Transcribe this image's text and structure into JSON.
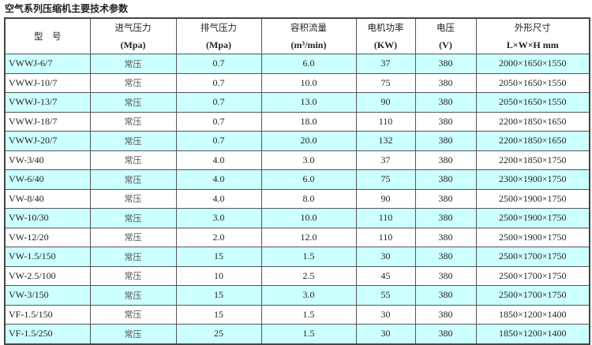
{
  "title": "空气系列压缩机主要技术参数",
  "colors": {
    "row_highlight": "#ccffff"
  },
  "headers": [
    {
      "cn": "型　号",
      "unit": ""
    },
    {
      "cn": "进气压力",
      "unit": "(Mpa)"
    },
    {
      "cn": "排气压力",
      "unit": "(Mpa)"
    },
    {
      "cn": "容积流量",
      "unit": "(m³/min)"
    },
    {
      "cn": "电机功率",
      "unit": "(KW)"
    },
    {
      "cn": "电压",
      "unit": "(V)"
    },
    {
      "cn": "外形尺寸",
      "unit": "L×W×H mm"
    }
  ],
  "rows": [
    [
      "VWWJ-6/7",
      "常压",
      "0.7",
      "6.0",
      "37",
      "380",
      "2000×1650×1550"
    ],
    [
      "VWWJ-10/7",
      "常压",
      "0.7",
      "10.0",
      "75",
      "380",
      "2050×1650×1550"
    ],
    [
      "VWWJ-13/7",
      "常压",
      "0.7",
      "13.0",
      "90",
      "380",
      "2050×1650×1550"
    ],
    [
      "VWWJ-18/7",
      "常压",
      "0.7",
      "18.0",
      "110",
      "380",
      "2200×1850×1650"
    ],
    [
      "VWWJ-20/7",
      "常压",
      "0.7",
      "20.0",
      "132",
      "380",
      "2200×1850×1650"
    ],
    [
      "VW-3/40",
      "常压",
      "4.0",
      "3.0",
      "37",
      "380",
      "2200×1850×1750"
    ],
    [
      "VW-6/40",
      "常压",
      "4.0",
      "6.0",
      "75",
      "380",
      "2300×1900×1750"
    ],
    [
      "VW-8/40",
      "常压",
      "4.0",
      "8.0",
      "90",
      "380",
      "2500×1900×1750"
    ],
    [
      "VW-10/30",
      "常压",
      "3.0",
      "10.0",
      "110",
      "380",
      "2500×1900×1750"
    ],
    [
      "VW-12/20",
      "常压",
      "2.0",
      "12.0",
      "110",
      "380",
      "2500×1900×1750"
    ],
    [
      "VW-1.5/150",
      "常压",
      "15",
      "1.5",
      "30",
      "380",
      "2500×1700×1750"
    ],
    [
      "VW-2.5/100",
      "常压",
      "10",
      "2.5",
      "45",
      "380",
      "2500×1700×1750"
    ],
    [
      "VW-3/150",
      "常压",
      "15",
      "3.0",
      "55",
      "380",
      "2500×1700×1750"
    ],
    [
      "VF-1.5/150",
      "常压",
      "15",
      "1.5",
      "30",
      "380",
      "1850×1200×1400"
    ],
    [
      "VF-1.5/250",
      "常压",
      "25",
      "1.5",
      "30",
      "380",
      "1850×1200×1400"
    ]
  ]
}
